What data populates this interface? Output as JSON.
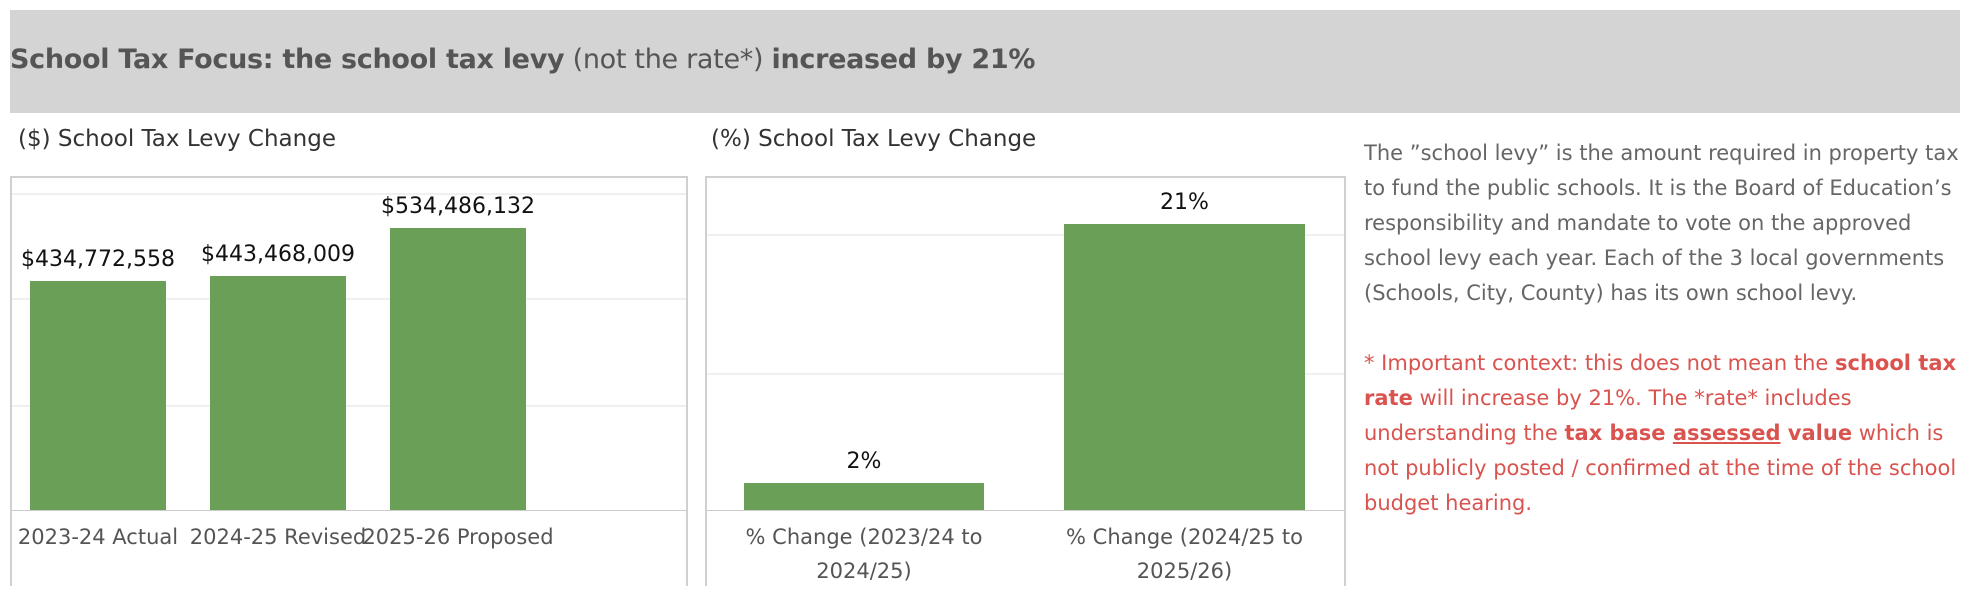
{
  "header": {
    "title_bold": "School Tax Focus: the school tax levy",
    "title_light": "(not the rate*)",
    "title_bold2": "increased by 21%"
  },
  "chart_data": [
    {
      "type": "bar",
      "title": "($) School Tax Levy Change",
      "categories": [
        "2023-24 Actual",
        "2024-25 Revised",
        "2025-26 Proposed"
      ],
      "values": [
        434772558,
        443468009,
        534486132
      ],
      "labels": [
        "$434,772,558",
        "$443,468,009",
        "$534,486,132"
      ],
      "ylim": [
        0,
        600000000
      ],
      "grid": true,
      "color": "#6a9f58"
    },
    {
      "type": "bar",
      "title": "(%) School Tax Levy Change",
      "categories": [
        "% Change (2023/24 to 2024/25)",
        "% Change (2024/25 to 2025/26)"
      ],
      "category_lines": [
        [
          "% Change (2023/24 to",
          "2024/25)"
        ],
        [
          "% Change (2024/25 to",
          "2025/26)"
        ]
      ],
      "values": [
        2,
        21
      ],
      "labels": [
        "2%",
        "21%"
      ],
      "ylim": [
        0,
        24
      ],
      "grid": true,
      "color": "#6a9f58"
    }
  ],
  "note": {
    "p1": "The ”school levy” is the amount required in property tax to fund the public schools. It is the Board of Education’s responsibility and mandate to vote on the approved school levy each year.  Each of the 3 local governments (Schools, City, County) has its own school levy.",
    "p2a": "* Important context: this does not mean the ",
    "p2b": "school tax rate",
    "p2c": " will increase by 21%. The *rate* includes understanding the ",
    "p2d": "tax base ",
    "p2e": "assessed",
    "p2f": " value",
    "p2g": " which is not publicly posted / confirmed at the time of the school budget hearing."
  }
}
